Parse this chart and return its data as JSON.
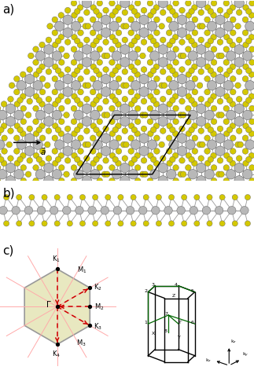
{
  "fig_width": 3.23,
  "fig_height": 4.76,
  "dpi": 100,
  "bg_color": "#ffffff",
  "panel_a_label": "a)",
  "panel_b_label": "b)",
  "panel_c_label": "c)",
  "atom_re_color": "#b8b8b8",
  "atom_s_color": "#d4c800",
  "bond_color": "#999999",
  "hex_fill": "#e8e8c0",
  "red_color": "#cc0000",
  "green_color": "#006600",
  "black_color": "#000000",
  "pink_color": "#ffaaaa",
  "bz_label_fontsize": 6.0
}
